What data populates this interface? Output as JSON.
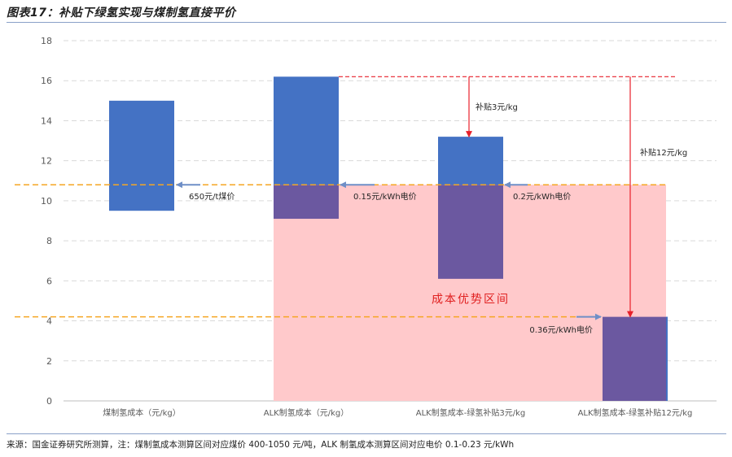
{
  "title": "图表17：补贴下绿氢实现与煤制氢直接平价",
  "source_note": "来源：国金证券研究所测算，注：煤制氢成本测算区间对应煤价 400-1050 元/吨，ALK 制氢成本测算区间对应电价 0.1-0.23 元/kWh",
  "colors": {
    "bar_blue": "#4472c4",
    "bar_purple": "#6b58a0",
    "zone_pink": "#ffc9cb",
    "ref_line": "#f5a623",
    "subsidy_line": "#e8202a",
    "arrow_blue": "#6f8fc7",
    "grid": "#d9d9d9"
  },
  "chart_data": {
    "type": "bar",
    "subtype": "floating-range",
    "title": "补贴下绿氢实现与煤制氢直接平价",
    "ylim": [
      0,
      18
    ],
    "yticks": [
      0,
      2,
      4,
      6,
      8,
      10,
      12,
      14,
      16,
      18
    ],
    "grid": true,
    "categories": [
      "煤制氢成本（元/kg）",
      "ALK制氢成本（元/kg）",
      "ALK制氢成本-绿氢补贴3元/kg",
      "ALK制氢成本-绿氢补贴12元/kg"
    ],
    "bars": [
      {
        "low": 9.5,
        "high": 15.0
      },
      {
        "low": 9.1,
        "high": 16.2
      },
      {
        "low": 6.1,
        "high": 13.2
      },
      {
        "low": 0.0,
        "high": 4.2
      }
    ],
    "reference_lines": [
      {
        "value": 10.8,
        "label": "650元/t煤价"
      },
      {
        "value": 4.2,
        "label": "0.36元/kWh电价"
      }
    ],
    "advantage_zone": {
      "label": "成本优势区间",
      "low": 0,
      "high": 10.8
    },
    "subsidy_line": {
      "value": 16.2
    },
    "annotations": {
      "subsidy_3": "补贴3元/kg",
      "subsidy_12": "补贴12元/kg",
      "price_alk": "0.15元/kWh电价",
      "price_sub3": "0.2元/kWh电价"
    }
  }
}
